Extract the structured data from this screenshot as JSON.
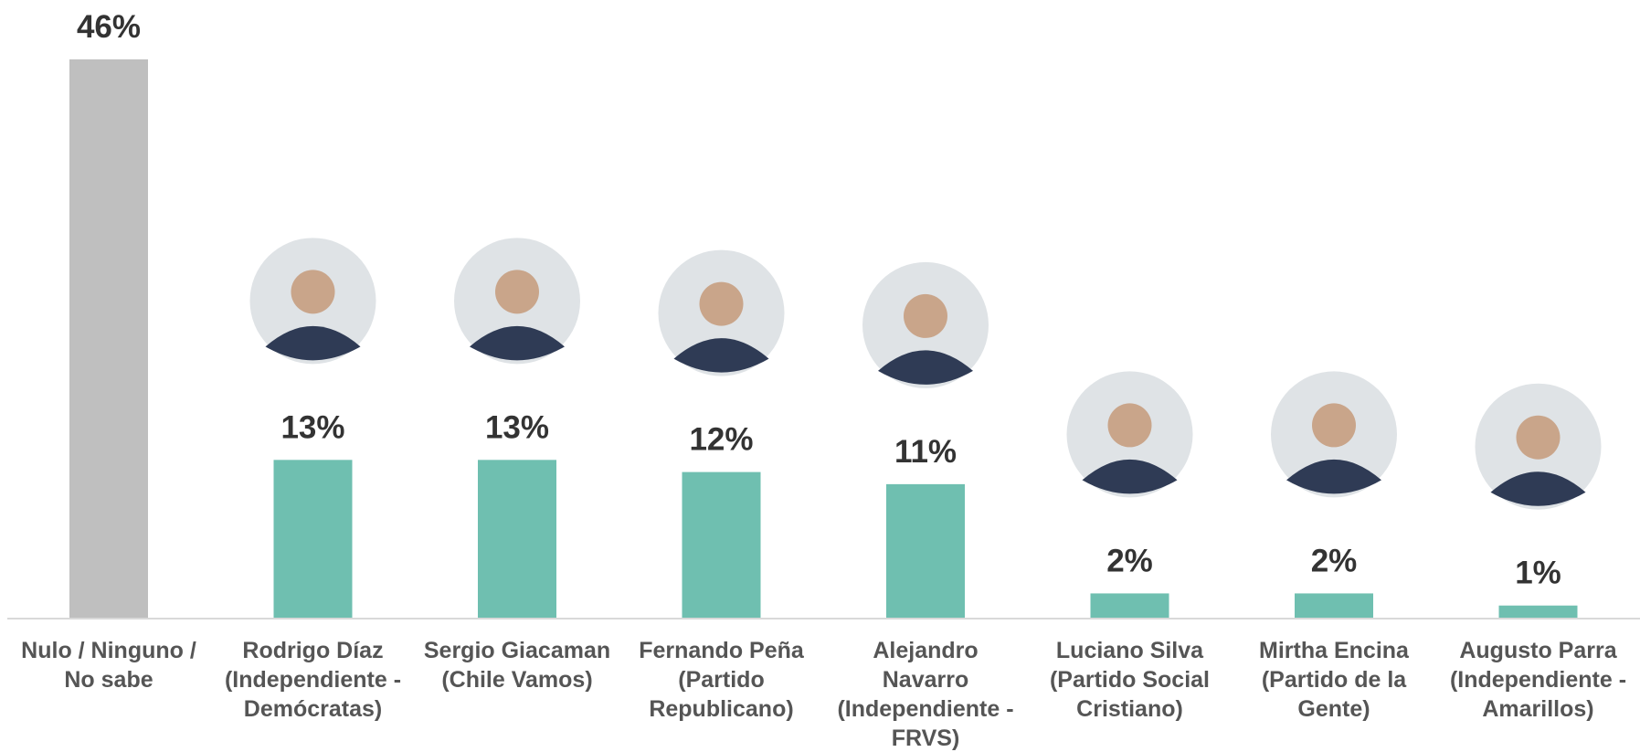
{
  "chart_data": {
    "type": "bar",
    "categories": [
      "Nulo / Ninguno / No sabe",
      "Rodrigo Díaz (Independiente - Demócratas)",
      "Sergio Giacaman (Chile Vamos)",
      "Fernando Peña (Partido Republicano)",
      "Alejandro Navarro (Independiente - FRVS)",
      "Luciano Silva (Partido Social Cristiano)",
      "Mirtha Encina (Partido de la Gente)",
      "Augusto Parra (Independiente - Amarillos)"
    ],
    "values": [
      46,
      13,
      13,
      12,
      11,
      2,
      2,
      1
    ],
    "value_labels": [
      "46%",
      "13%",
      "13%",
      "12%",
      "11%",
      "2%",
      "2%",
      "1%"
    ],
    "colors": [
      "#bfbfbf",
      "#6fbfb0",
      "#6fbfb0",
      "#6fbfb0",
      "#6fbfb0",
      "#6fbfb0",
      "#6fbfb0",
      "#6fbfb0"
    ]
  }
}
